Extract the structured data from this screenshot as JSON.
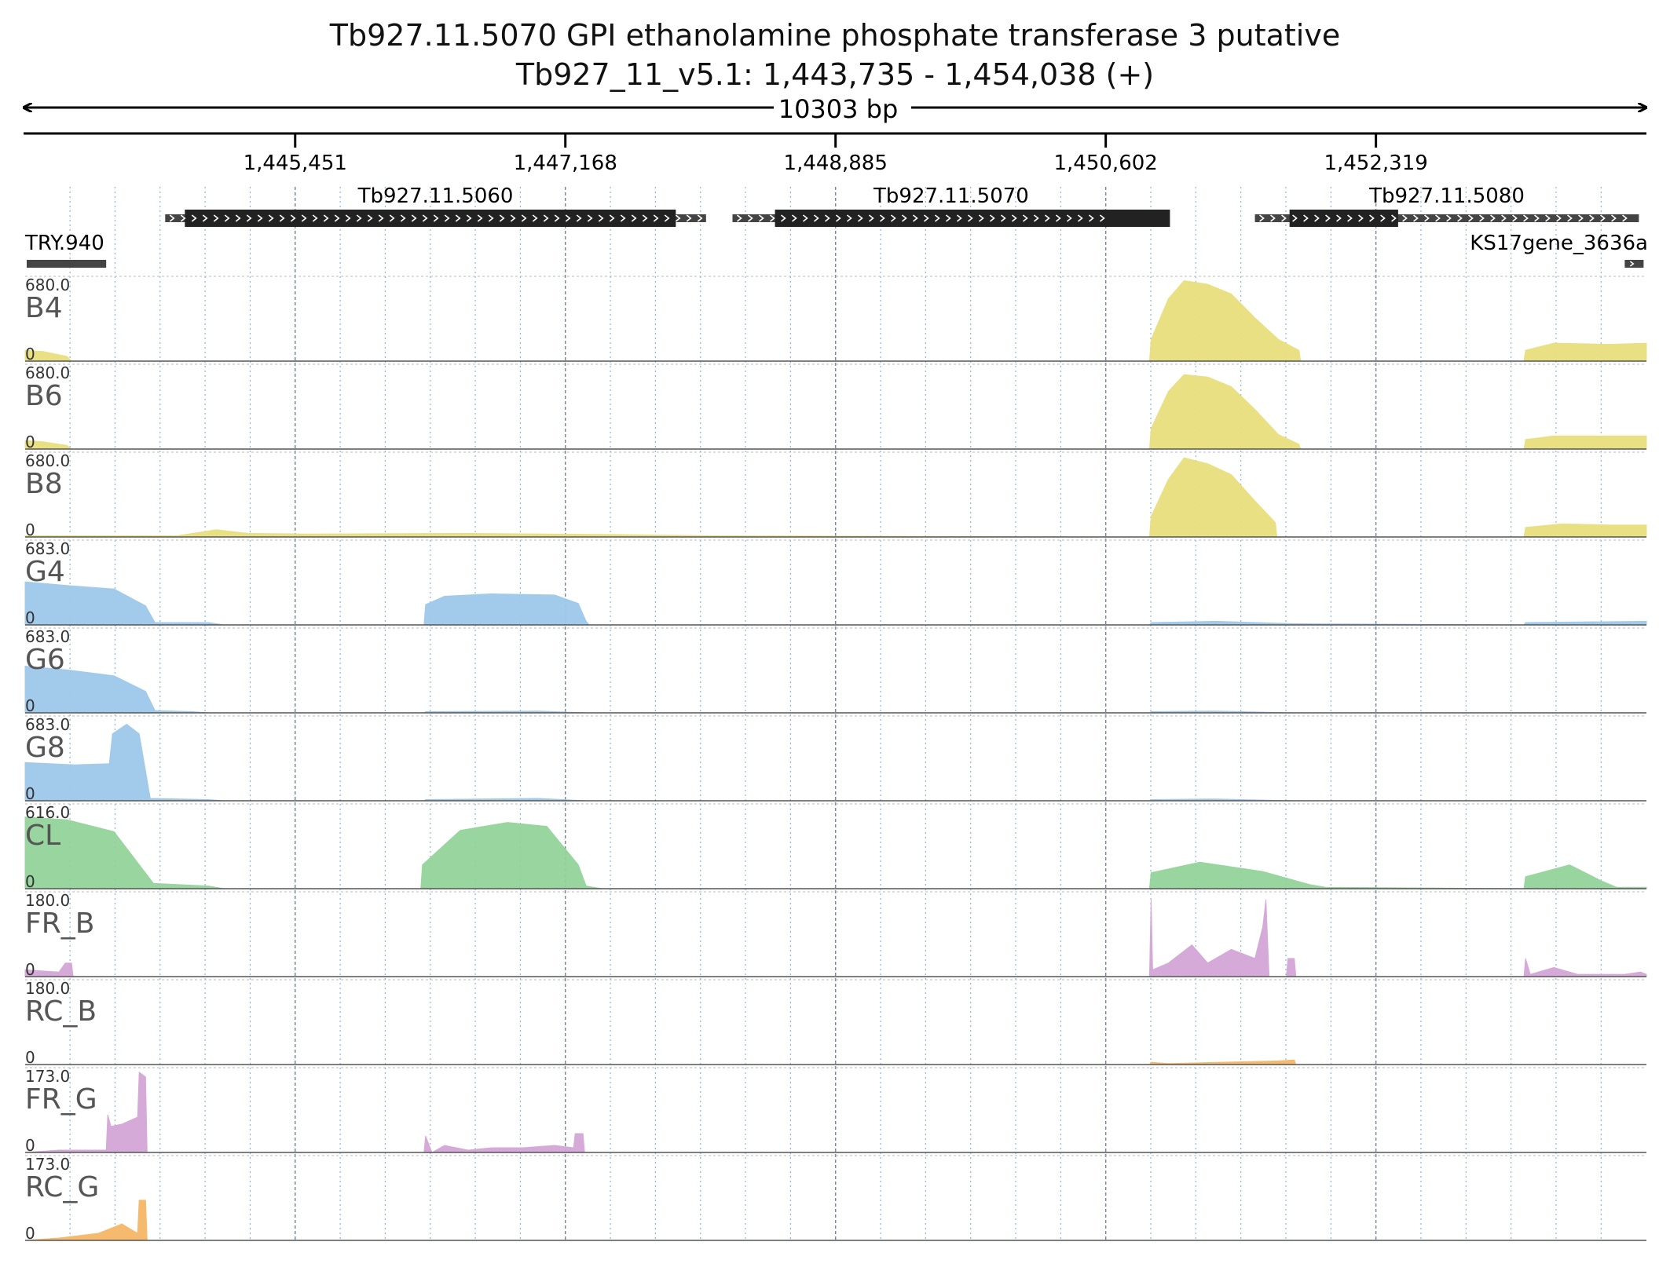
{
  "header": {
    "title": "Tb927.11.5070  GPI ethanolamine phosphate transferase 3  putative",
    "locus": "Tb927_11_v5.1: 1,443,735 - 1,454,038 (+)",
    "span_label": "10303 bp"
  },
  "region": {
    "start": 1443735,
    "end": 1454038
  },
  "ruler": {
    "ticks": [
      {
        "pos": 1445451,
        "label": "1,445,451"
      },
      {
        "pos": 1447168,
        "label": "1,447,168"
      },
      {
        "pos": 1448885,
        "label": "1,448,885"
      },
      {
        "pos": 1450602,
        "label": "1,450,602"
      },
      {
        "pos": 1452319,
        "label": "1,452,319"
      }
    ]
  },
  "genes": [
    {
      "name": "Tb927.11.5060",
      "start": 1444625,
      "end": 1448062,
      "cds_start": 1444750,
      "cds_end": 1447870,
      "strand": "+",
      "row": 0
    },
    {
      "name": "Tb927.11.5070",
      "start": 1448230,
      "end": 1450640,
      "cds_start": 1448500,
      "cds_end": 1451010,
      "strand": "+",
      "row": 0
    },
    {
      "name": "Tb927.11.5080",
      "start": 1451550,
      "end": 1453990,
      "cds_start": 1451770,
      "cds_end": 1452460,
      "strand": "+",
      "row": 0
    },
    {
      "name": "TRY.940",
      "start": 1443745,
      "end": 1444250,
      "strand": "none",
      "row": 1
    },
    {
      "name": "KS17gene_3636a",
      "start": 1453900,
      "end": 1454020,
      "strand": "+",
      "row": 1
    }
  ],
  "colors": {
    "bloodstream": "#e8df7e",
    "procyclic": "#9ec9ea",
    "culture": "#93d39a",
    "forward": "#d4a6d6",
    "reverse": "#f5b766",
    "gene_box": "#222222",
    "utr_box": "#444444"
  },
  "tracks": [
    {
      "name": "B4",
      "max_label": "680.0",
      "min_label": "0",
      "color_key": "bloodstream",
      "profile": [
        [
          1443735,
          90
        ],
        [
          1443850,
          80
        ],
        [
          1444000,
          40
        ],
        [
          1444030,
          0
        ],
        [
          1450880,
          0
        ],
        [
          1450890,
          180
        ],
        [
          1451000,
          520
        ],
        [
          1451100,
          670
        ],
        [
          1451250,
          640
        ],
        [
          1451400,
          560
        ],
        [
          1451550,
          360
        ],
        [
          1451700,
          180
        ],
        [
          1451830,
          90
        ],
        [
          1451840,
          0
        ],
        [
          1453260,
          0
        ],
        [
          1453270,
          90
        ],
        [
          1453450,
          150
        ],
        [
          1453800,
          140
        ],
        [
          1454038,
          150
        ]
      ]
    },
    {
      "name": "B6",
      "max_label": "680.0",
      "min_label": "0",
      "color_key": "bloodstream",
      "profile": [
        [
          1443735,
          70
        ],
        [
          1443850,
          60
        ],
        [
          1444000,
          30
        ],
        [
          1444030,
          0
        ],
        [
          1450880,
          0
        ],
        [
          1450890,
          170
        ],
        [
          1451000,
          480
        ],
        [
          1451100,
          620
        ],
        [
          1451250,
          600
        ],
        [
          1451400,
          520
        ],
        [
          1451550,
          330
        ],
        [
          1451700,
          120
        ],
        [
          1451830,
          40
        ],
        [
          1451840,
          0
        ],
        [
          1453260,
          0
        ],
        [
          1453270,
          80
        ],
        [
          1453450,
          110
        ],
        [
          1454038,
          110
        ]
      ]
    },
    {
      "name": "B8",
      "max_label": "680.0",
      "min_label": "0",
      "color_key": "bloodstream",
      "profile": [
        [
          1443735,
          10
        ],
        [
          1444700,
          10
        ],
        [
          1444950,
          60
        ],
        [
          1445150,
          30
        ],
        [
          1445500,
          25
        ],
        [
          1446500,
          30
        ],
        [
          1447500,
          20
        ],
        [
          1448100,
          10
        ],
        [
          1450880,
          0
        ],
        [
          1450890,
          170
        ],
        [
          1451000,
          480
        ],
        [
          1451100,
          660
        ],
        [
          1451250,
          610
        ],
        [
          1451400,
          520
        ],
        [
          1451550,
          300
        ],
        [
          1451680,
          120
        ],
        [
          1451690,
          0
        ],
        [
          1453260,
          0
        ],
        [
          1453270,
          80
        ],
        [
          1453500,
          110
        ],
        [
          1453800,
          100
        ],
        [
          1454038,
          100
        ]
      ]
    },
    {
      "name": "G4",
      "max_label": "683.0",
      "min_label": "0",
      "color_key": "procyclic",
      "profile": [
        [
          1443735,
          360
        ],
        [
          1444000,
          330
        ],
        [
          1444300,
          300
        ],
        [
          1444500,
          160
        ],
        [
          1444560,
          20
        ],
        [
          1444900,
          20
        ],
        [
          1445000,
          0
        ],
        [
          1446270,
          0
        ],
        [
          1446280,
          170
        ],
        [
          1446400,
          240
        ],
        [
          1446700,
          260
        ],
        [
          1447100,
          250
        ],
        [
          1447250,
          180
        ],
        [
          1447300,
          30
        ],
        [
          1447320,
          0
        ],
        [
          1450880,
          0
        ],
        [
          1450890,
          20
        ],
        [
          1451300,
          30
        ],
        [
          1451800,
          10
        ],
        [
          1453260,
          0
        ],
        [
          1453270,
          20
        ],
        [
          1454038,
          30
        ]
      ]
    },
    {
      "name": "G6",
      "max_label": "683.0",
      "min_label": "0",
      "color_key": "procyclic",
      "profile": [
        [
          1443735,
          390
        ],
        [
          1444000,
          360
        ],
        [
          1444300,
          310
        ],
        [
          1444500,
          180
        ],
        [
          1444560,
          20
        ],
        [
          1444800,
          10
        ],
        [
          1444900,
          0
        ],
        [
          1446270,
          0
        ],
        [
          1446280,
          10
        ],
        [
          1447000,
          15
        ],
        [
          1447300,
          0
        ],
        [
          1450880,
          0
        ],
        [
          1450890,
          10
        ],
        [
          1451300,
          15
        ],
        [
          1451800,
          0
        ]
      ]
    },
    {
      "name": "G8",
      "max_label": "683.0",
      "min_label": "0",
      "color_key": "procyclic",
      "profile": [
        [
          1443735,
          320
        ],
        [
          1444050,
          300
        ],
        [
          1444270,
          310
        ],
        [
          1444290,
          560
        ],
        [
          1444380,
          640
        ],
        [
          1444460,
          560
        ],
        [
          1444530,
          20
        ],
        [
          1444900,
          10
        ],
        [
          1445000,
          0
        ],
        [
          1446270,
          0
        ],
        [
          1446280,
          10
        ],
        [
          1447000,
          20
        ],
        [
          1447300,
          0
        ],
        [
          1450880,
          0
        ],
        [
          1450890,
          10
        ],
        [
          1451300,
          15
        ],
        [
          1451800,
          0
        ]
      ]
    },
    {
      "name": "CL",
      "max_label": "616.0",
      "min_label": "0",
      "color_key": "culture",
      "profile": [
        [
          1443735,
          540
        ],
        [
          1444000,
          520
        ],
        [
          1444300,
          430
        ],
        [
          1444550,
          40
        ],
        [
          1444900,
          20
        ],
        [
          1445000,
          0
        ],
        [
          1446250,
          0
        ],
        [
          1446260,
          180
        ],
        [
          1446500,
          440
        ],
        [
          1446800,
          500
        ],
        [
          1447050,
          470
        ],
        [
          1447250,
          180
        ],
        [
          1447300,
          20
        ],
        [
          1447400,
          0
        ],
        [
          1450880,
          0
        ],
        [
          1450890,
          120
        ],
        [
          1451200,
          200
        ],
        [
          1451600,
          130
        ],
        [
          1451900,
          30
        ],
        [
          1452000,
          10
        ],
        [
          1453260,
          0
        ],
        [
          1453270,
          90
        ],
        [
          1453550,
          180
        ],
        [
          1453750,
          60
        ],
        [
          1453850,
          10
        ],
        [
          1454038,
          10
        ]
      ]
    },
    {
      "name": "FR_B",
      "max_label": "180.0",
      "min_label": "0",
      "color_key": "forward",
      "profile": [
        [
          1443735,
          15
        ],
        [
          1443950,
          10
        ],
        [
          1443990,
          30
        ],
        [
          1444030,
          30
        ],
        [
          1444040,
          0
        ],
        [
          1450880,
          0
        ],
        [
          1450890,
          170
        ],
        [
          1450900,
          15
        ],
        [
          1451000,
          30
        ],
        [
          1451150,
          70
        ],
        [
          1451250,
          30
        ],
        [
          1451400,
          60
        ],
        [
          1451550,
          40
        ],
        [
          1451600,
          110
        ],
        [
          1451620,
          170
        ],
        [
          1451640,
          0
        ],
        [
          1451750,
          0
        ],
        [
          1451760,
          40
        ],
        [
          1451800,
          40
        ],
        [
          1451810,
          0
        ],
        [
          1453260,
          0
        ],
        [
          1453270,
          40
        ],
        [
          1453300,
          5
        ],
        [
          1453450,
          20
        ],
        [
          1453600,
          5
        ],
        [
          1453900,
          5
        ],
        [
          1454000,
          10
        ],
        [
          1454038,
          5
        ]
      ]
    },
    {
      "name": "RC_B",
      "max_label": "180.0",
      "min_label": "0",
      "color_key": "reverse",
      "profile": [
        [
          1450880,
          0
        ],
        [
          1450890,
          5
        ],
        [
          1451000,
          2
        ],
        [
          1451700,
          8
        ],
        [
          1451800,
          10
        ],
        [
          1451810,
          0
        ]
      ]
    },
    {
      "name": "FR_G",
      "max_label": "173.0",
      "min_label": "0",
      "color_key": "forward",
      "profile": [
        [
          1443735,
          0
        ],
        [
          1443950,
          5
        ],
        [
          1444250,
          5
        ],
        [
          1444260,
          80
        ],
        [
          1444280,
          55
        ],
        [
          1444350,
          60
        ],
        [
          1444450,
          75
        ],
        [
          1444460,
          170
        ],
        [
          1444500,
          160
        ],
        [
          1444510,
          0
        ],
        [
          1446270,
          0
        ],
        [
          1446280,
          35
        ],
        [
          1446320,
          0
        ],
        [
          1446400,
          15
        ],
        [
          1446550,
          5
        ],
        [
          1446700,
          10
        ],
        [
          1446900,
          10
        ],
        [
          1447100,
          15
        ],
        [
          1447220,
          10
        ],
        [
          1447230,
          40
        ],
        [
          1447280,
          40
        ],
        [
          1447290,
          0
        ]
      ]
    },
    {
      "name": "RC_G",
      "max_label": "173.0",
      "min_label": "0",
      "color_key": "reverse",
      "profile": [
        [
          1443735,
          0
        ],
        [
          1443950,
          5
        ],
        [
          1444200,
          15
        ],
        [
          1444350,
          35
        ],
        [
          1444450,
          15
        ],
        [
          1444460,
          85
        ],
        [
          1444500,
          85
        ],
        [
          1444510,
          0
        ]
      ]
    }
  ]
}
